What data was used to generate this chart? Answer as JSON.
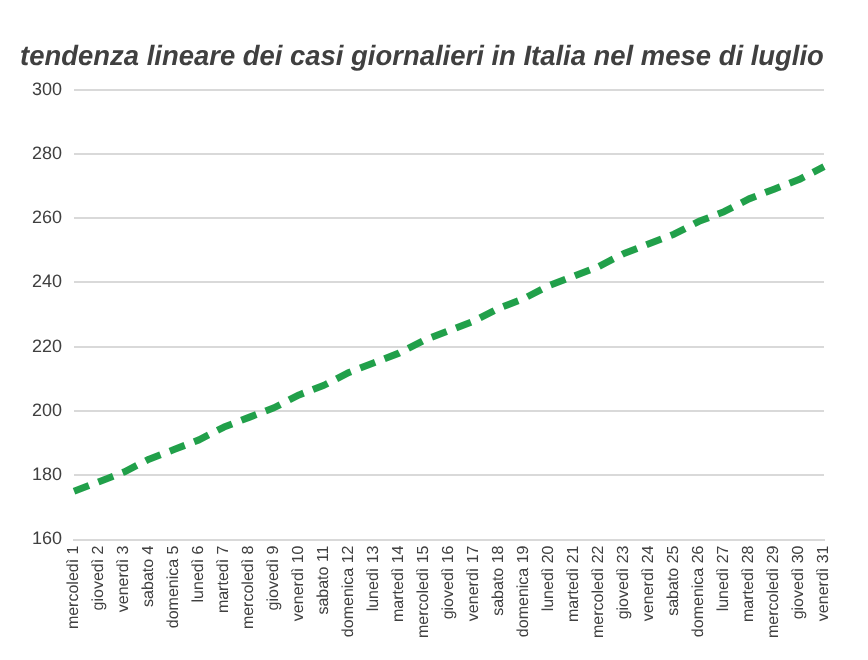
{
  "chart_data": {
    "type": "line",
    "title": "tendenza lineare dei casi giornalieri in Italia nel mese di luglio",
    "categories": [
      "mercoledì 1",
      "giovedì 2",
      "venerdì 3",
      "sabato 4",
      "domenica 5",
      "lunedì 6",
      "martedì 7",
      "mercoledì 8",
      "giovedì 9",
      "venerdì 10",
      "sabato 11",
      "domenica 12",
      "lunedì 13",
      "martedì 14",
      "mercoledì 15",
      "giovedì 16",
      "venerdì 17",
      "sabato 18",
      "domenica 19",
      "lunedì 20",
      "martedì 21",
      "mercoledì 22",
      "giovedì 23",
      "venerdì 24",
      "sabato 25",
      "domenica 26",
      "lunedì 27",
      "martedì 28",
      "mercoledì 29",
      "giovedì 30",
      "venerdì 31"
    ],
    "series": [
      {
        "color": "#21a04a",
        "values": [
          175,
          178,
          181,
          185,
          188,
          191,
          195,
          198,
          201,
          205,
          208,
          212,
          215,
          218,
          222,
          225,
          228,
          232,
          235,
          239,
          242,
          245,
          249,
          252,
          255,
          259,
          262,
          266,
          269,
          272,
          276
        ]
      }
    ],
    "ylim": [
      160,
      300
    ],
    "yticks": [
      160,
      180,
      200,
      220,
      240,
      260,
      280,
      300
    ],
    "grid": "y",
    "legend": false,
    "marker": "none",
    "line_style": "dashed"
  }
}
